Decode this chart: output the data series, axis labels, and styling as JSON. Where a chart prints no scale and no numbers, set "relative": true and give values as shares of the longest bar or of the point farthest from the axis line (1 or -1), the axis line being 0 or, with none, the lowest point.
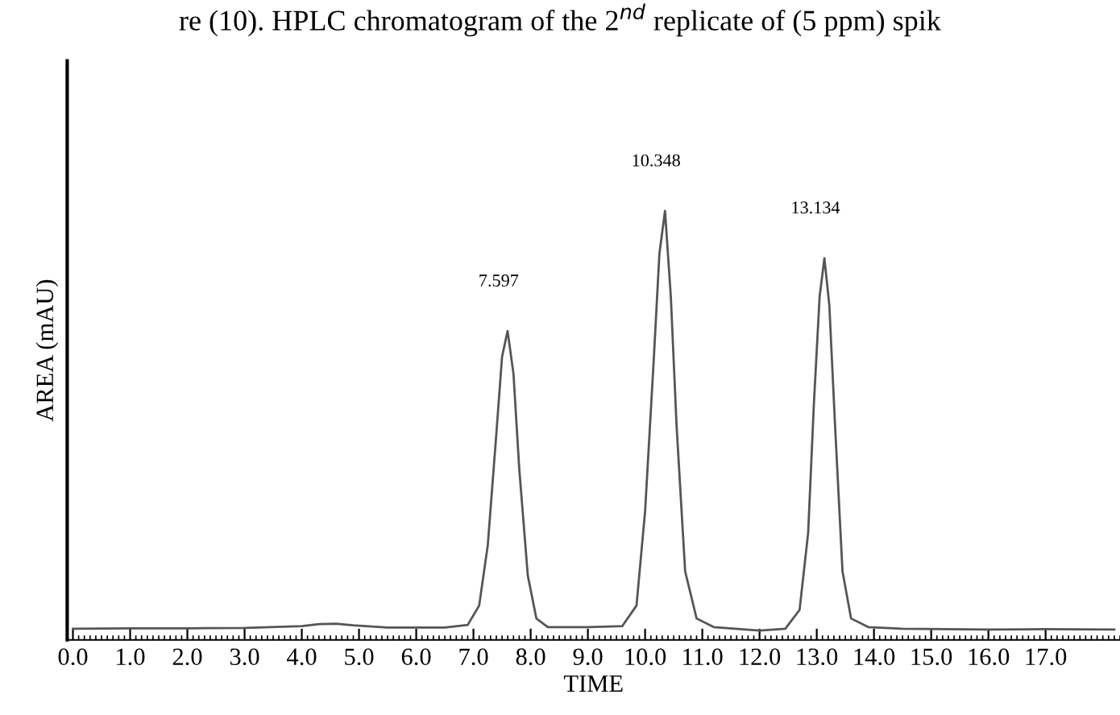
{
  "chart_data": {
    "type": "line",
    "title": "re (10). HPLC chromatogram of the 2$^{nd}$ replicate of (5 ppm) spik",
    "xlabel": "TIME",
    "ylabel": "AREA (mAU)",
    "relative": true,
    "color": "#555555",
    "x": [
      0,
      1,
      2,
      3,
      4,
      4.3,
      4.6,
      4.9,
      5.5,
      6.5,
      6.9,
      7.1,
      7.25,
      7.4,
      7.5,
      7.597,
      7.7,
      7.8,
      7.95,
      8.1,
      8.3,
      9,
      9.6,
      9.85,
      10.0,
      10.15,
      10.25,
      10.348,
      10.45,
      10.55,
      10.7,
      10.9,
      11.2,
      12,
      12.45,
      12.7,
      12.85,
      12.95,
      13.05,
      13.134,
      13.22,
      13.32,
      13.45,
      13.6,
      13.9,
      14.5,
      16,
      17,
      18.2
    ],
    "values": [
      0.026,
      0.027,
      0.027,
      0.028,
      0.032,
      0.037,
      0.038,
      0.034,
      0.029,
      0.029,
      0.035,
      0.08,
      0.22,
      0.48,
      0.66,
      0.72,
      0.62,
      0.4,
      0.15,
      0.05,
      0.03,
      0.03,
      0.032,
      0.08,
      0.3,
      0.65,
      0.9,
      1,
      0.8,
      0.5,
      0.16,
      0.05,
      0.03,
      0.022,
      0.026,
      0.07,
      0.25,
      0.55,
      0.8,
      0.89,
      0.78,
      0.5,
      0.16,
      0.05,
      0.03,
      0.026,
      0.024,
      0.025,
      0.024
    ],
    "xlim": [
      -0.1,
      18.3
    ],
    "xticks": [
      {
        "value": 0,
        "label": "0.0"
      },
      {
        "value": 1,
        "label": "1.0"
      },
      {
        "value": 2,
        "label": "2.0"
      },
      {
        "value": 3,
        "label": "3.0"
      },
      {
        "value": 4,
        "label": "4.0"
      },
      {
        "value": 5,
        "label": "5.0"
      },
      {
        "value": 6,
        "label": "6.0"
      },
      {
        "value": 7,
        "label": "7.0"
      },
      {
        "value": 8,
        "label": "8.0"
      },
      {
        "value": 9,
        "label": "9.0"
      },
      {
        "value": 10,
        "label": "10.0"
      },
      {
        "value": 11,
        "label": "11.0"
      },
      {
        "value": 12,
        "label": "12.0"
      },
      {
        "value": 13,
        "label": "13.0"
      },
      {
        "value": 14,
        "label": "14.0"
      },
      {
        "value": 15,
        "label": "15.0"
      },
      {
        "value": 16,
        "label": "16.0"
      },
      {
        "value": 17,
        "label": "17.0"
      }
    ],
    "annotations": [
      {
        "text": "7.597",
        "x": 7.597,
        "y": 0.72
      },
      {
        "text": "10.348",
        "x": 10.348,
        "y": 1
      },
      {
        "text": "13.134",
        "x": 13.134,
        "y": 0.89
      }
    ],
    "marker": "none",
    "line_style": "solid"
  }
}
